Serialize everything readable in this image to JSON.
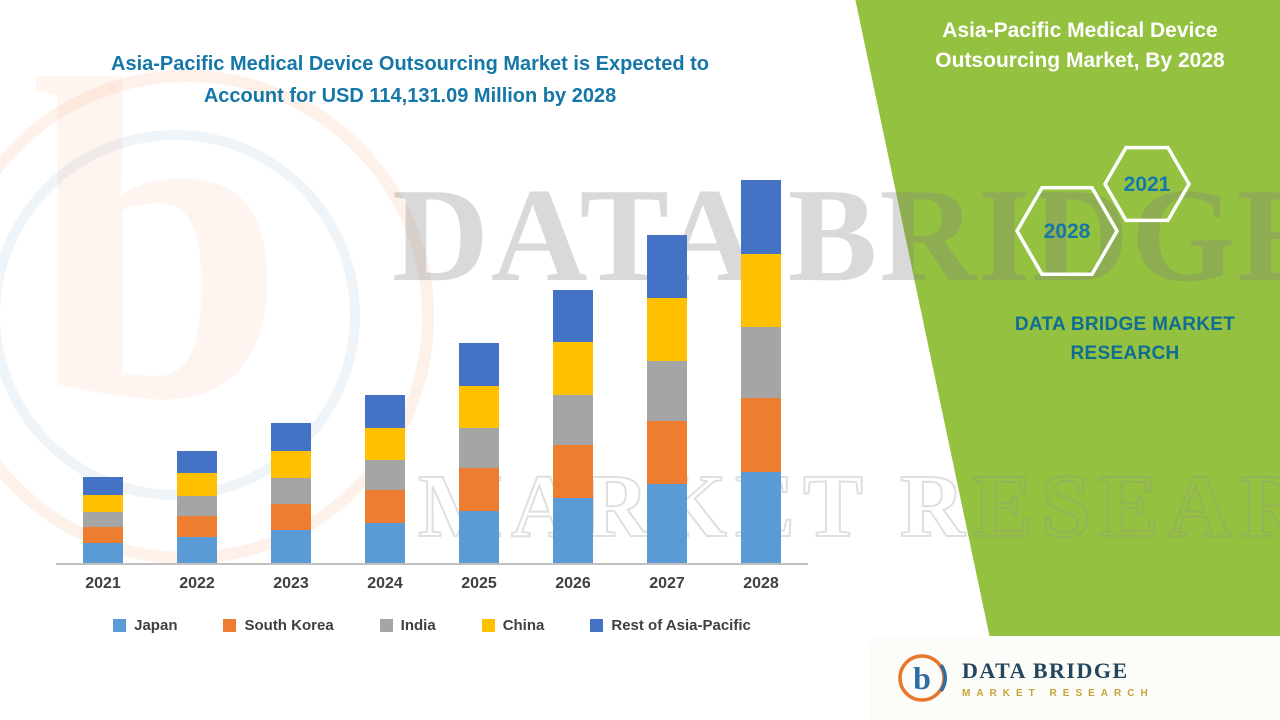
{
  "title": {
    "line1": "Asia-Pacific Medical Device Outsourcing Market is Expected to",
    "line2": "Account for USD 114,131.09 Million by 2028"
  },
  "side_panel": {
    "heading": "Asia-Pacific Medical Device Outsourcing Market, By 2028",
    "hex_year_top": "2021",
    "hex_year_bottom": "2028",
    "brand_caption": "DATA BRIDGE MARKET RESEARCH"
  },
  "footer_logo": {
    "brand": "DATA BRIDGE",
    "tagline": "MARKET RESEARCH"
  },
  "watermark": {
    "line1": "DATA BRIDGE",
    "line2": "MARKET RESEARCH",
    "letter": "b"
  },
  "colors": {
    "green_panel": "#94c13f",
    "title_teal": "#1577a8",
    "axis_label": "#3f3f3f"
  },
  "chart_data": {
    "type": "bar",
    "subtype": "stacked-column",
    "title": "Asia-Pacific Medical Device Outsourcing Market is Expected to Account for USD 114,131.09 Million by 2028",
    "unit": "USD Million",
    "categories": [
      "2021",
      "2022",
      "2023",
      "2024",
      "2025",
      "2026",
      "2027",
      "2028"
    ],
    "series": [
      {
        "name": "Japan",
        "color": "#5B9BD5",
        "values": [
          6000,
          7800,
          9900,
          12000,
          15600,
          19500,
          23400,
          27000
        ]
      },
      {
        "name": "South Korea",
        "color": "#ED7D31",
        "values": [
          4800,
          6300,
          7800,
          9600,
          12600,
          15600,
          18900,
          22200
        ]
      },
      {
        "name": "India",
        "color": "#A5A5A5",
        "values": [
          4500,
          6000,
          7500,
          9000,
          12000,
          15000,
          18000,
          21000
        ]
      },
      {
        "name": "China",
        "color": "#FFC000",
        "values": [
          5100,
          6600,
          8100,
          9600,
          12600,
          15600,
          18600,
          21900
        ]
      },
      {
        "name": "Rest of Asia-Pacific",
        "color": "#4472C4",
        "values": [
          5100,
          6600,
          8400,
          9900,
          12600,
          15600,
          18900,
          22031.09
        ]
      }
    ],
    "totals": [
      25500,
      33300,
      41700,
      50100,
      65400,
      81300,
      97800,
      114131.09
    ],
    "xlabel": "",
    "ylabel": "",
    "ylim": [
      0,
      120000
    ],
    "grid": false,
    "legend_position": "bottom"
  }
}
